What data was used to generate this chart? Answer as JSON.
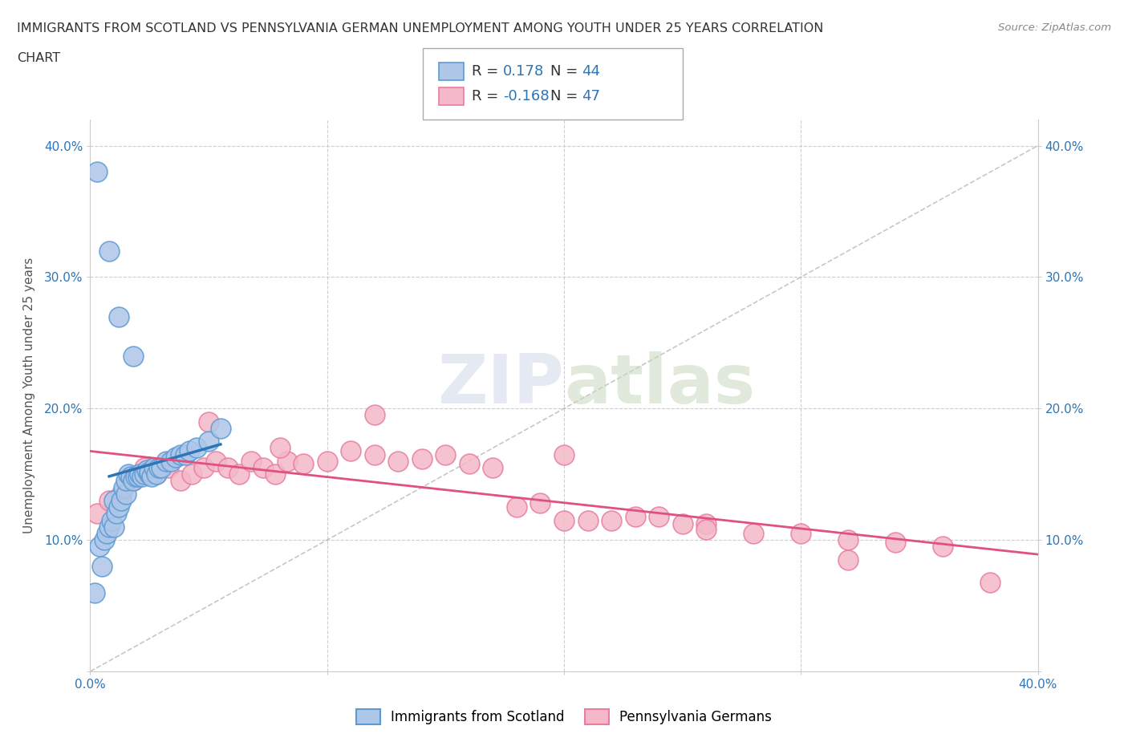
{
  "title_line1": "IMMIGRANTS FROM SCOTLAND VS PENNSYLVANIA GERMAN UNEMPLOYMENT AMONG YOUTH UNDER 25 YEARS CORRELATION",
  "title_line2": "CHART",
  "source": "Source: ZipAtlas.com",
  "ylabel": "Unemployment Among Youth under 25 years",
  "xlim": [
    0.0,
    0.4
  ],
  "ylim": [
    0.0,
    0.42
  ],
  "xticks": [
    0.0,
    0.1,
    0.2,
    0.3,
    0.4
  ],
  "xticklabels": [
    "0.0%",
    "",
    "",
    "",
    "40.0%"
  ],
  "yticks": [
    0.1,
    0.2,
    0.3,
    0.4
  ],
  "yticklabels": [
    "10.0%",
    "20.0%",
    "30.0%",
    "40.0%"
  ],
  "grid_color": "#c8c8c8",
  "background_color": "#ffffff",
  "scotland_color": "#aec6e8",
  "scotland_edge": "#5b9bd5",
  "pagerman_color": "#f4b8c8",
  "pagerman_edge": "#e87da0",
  "scotland_x": [
    0.002,
    0.004,
    0.005,
    0.006,
    0.007,
    0.008,
    0.009,
    0.01,
    0.01,
    0.011,
    0.012,
    0.013,
    0.014,
    0.015,
    0.015,
    0.016,
    0.017,
    0.018,
    0.019,
    0.02,
    0.021,
    0.022,
    0.023,
    0.024,
    0.025,
    0.025,
    0.026,
    0.027,
    0.028,
    0.029,
    0.03,
    0.032,
    0.034,
    0.036,
    0.038,
    0.04,
    0.042,
    0.045,
    0.05,
    0.055,
    0.003,
    0.008,
    0.012,
    0.018
  ],
  "scotland_y": [
    0.06,
    0.095,
    0.08,
    0.1,
    0.105,
    0.11,
    0.115,
    0.11,
    0.13,
    0.12,
    0.125,
    0.13,
    0.14,
    0.135,
    0.145,
    0.15,
    0.148,
    0.145,
    0.148,
    0.148,
    0.15,
    0.148,
    0.15,
    0.153,
    0.15,
    0.152,
    0.148,
    0.155,
    0.15,
    0.155,
    0.155,
    0.16,
    0.16,
    0.163,
    0.165,
    0.165,
    0.168,
    0.17,
    0.175,
    0.185,
    0.38,
    0.32,
    0.27,
    0.24
  ],
  "pagerman_x": [
    0.003,
    0.008,
    0.013,
    0.018,
    0.023,
    0.028,
    0.033,
    0.038,
    0.043,
    0.048,
    0.053,
    0.058,
    0.063,
    0.068,
    0.073,
    0.078,
    0.083,
    0.09,
    0.1,
    0.11,
    0.12,
    0.13,
    0.14,
    0.15,
    0.16,
    0.17,
    0.18,
    0.19,
    0.2,
    0.21,
    0.22,
    0.23,
    0.24,
    0.25,
    0.26,
    0.28,
    0.3,
    0.32,
    0.34,
    0.36,
    0.05,
    0.08,
    0.12,
    0.2,
    0.26,
    0.32,
    0.38
  ],
  "pagerman_y": [
    0.12,
    0.13,
    0.135,
    0.145,
    0.155,
    0.15,
    0.155,
    0.145,
    0.15,
    0.155,
    0.16,
    0.155,
    0.15,
    0.16,
    0.155,
    0.15,
    0.16,
    0.158,
    0.16,
    0.168,
    0.165,
    0.16,
    0.162,
    0.165,
    0.158,
    0.155,
    0.125,
    0.128,
    0.115,
    0.115,
    0.115,
    0.118,
    0.118,
    0.112,
    0.112,
    0.105,
    0.105,
    0.1,
    0.098,
    0.095,
    0.19,
    0.17,
    0.195,
    0.165,
    0.108,
    0.085,
    0.068
  ],
  "trendline_scotland_color": "#2e75b6",
  "trendline_pagerman_color": "#e05080",
  "trendline_ref_color": "#b0b0b0",
  "legend_label1": "Immigrants from Scotland",
  "legend_label2": "Pennsylvania Germans"
}
